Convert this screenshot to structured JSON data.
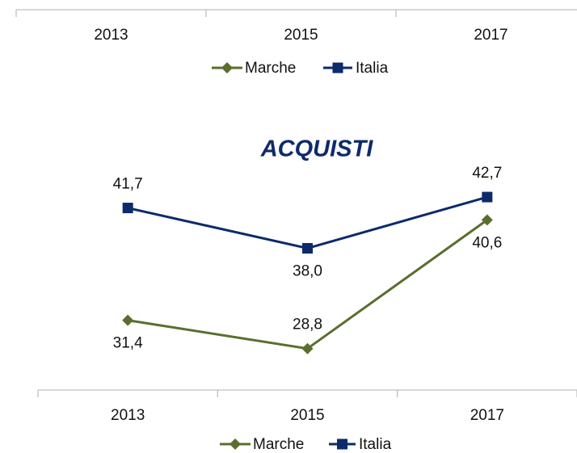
{
  "chart_data": [
    {
      "type": "line",
      "categories": [
        "2013",
        "2015",
        "2017"
      ],
      "series": [
        {
          "name": "Marche",
          "color": "#5a6e2e",
          "marker": "diamond",
          "values": [
            null,
            null,
            null
          ]
        },
        {
          "name": "Italia",
          "color": "#0d2a6b",
          "marker": "square",
          "values": [
            null,
            null,
            null
          ]
        }
      ],
      "legend": "bottom"
    },
    {
      "type": "line",
      "title": "ACQUISTI",
      "categories": [
        "2013",
        "2015",
        "2017"
      ],
      "series": [
        {
          "name": "Marche",
          "color": "#5a6e2e",
          "marker": "diamond",
          "values": [
            31.4,
            28.8,
            40.6
          ],
          "value_labels": [
            "31,4",
            "28,8",
            "40,6"
          ]
        },
        {
          "name": "Italia",
          "color": "#0d2a6b",
          "marker": "square",
          "values": [
            41.7,
            38.0,
            42.7
          ],
          "value_labels": [
            "41,7",
            "38,0",
            "42,7"
          ]
        }
      ],
      "ylim": [
        25,
        46
      ],
      "legend": "bottom"
    }
  ]
}
